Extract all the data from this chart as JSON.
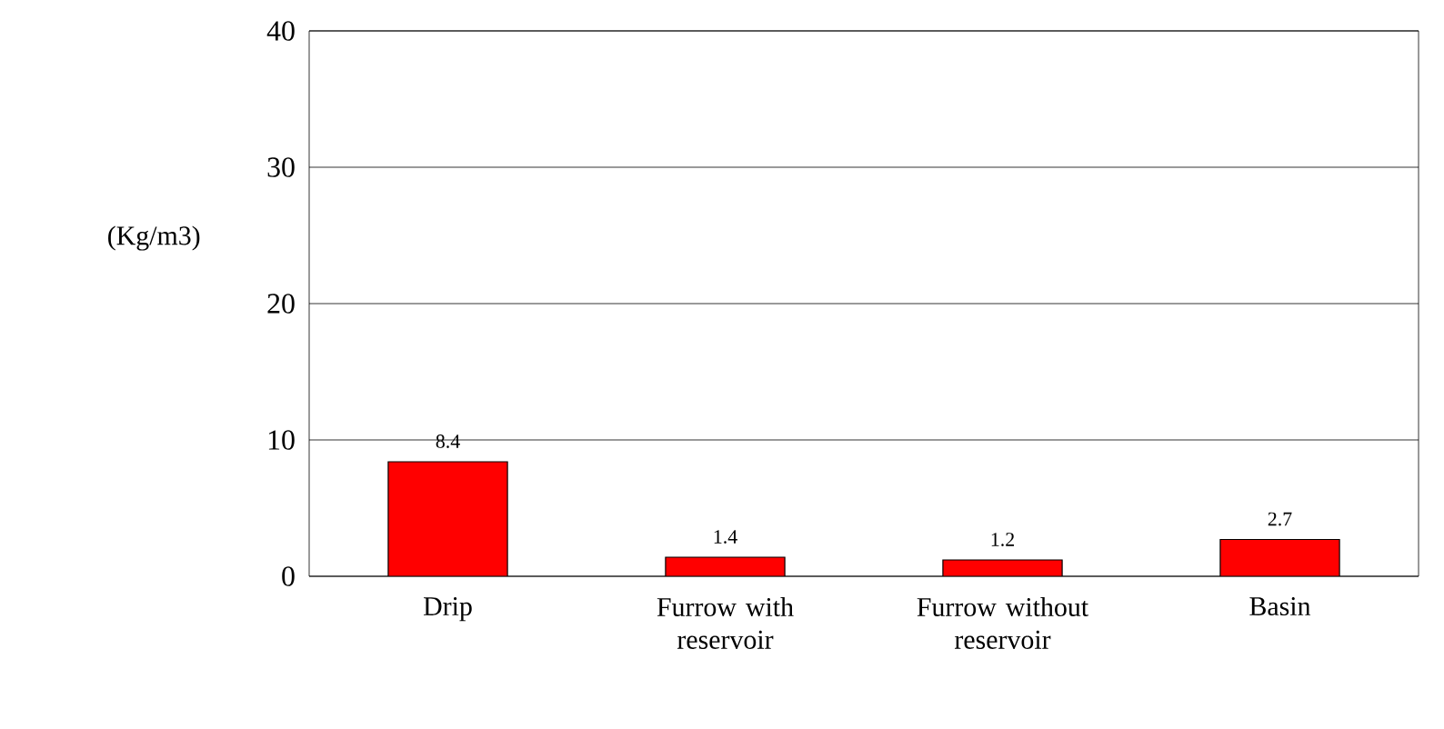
{
  "chart_data": {
    "type": "bar",
    "ylabel": "(Kg/m3)",
    "categories": [
      "Drip",
      "Furrow with reservoir",
      "Furrow without reservoir",
      "Basin"
    ],
    "values": [
      8.4,
      1.4,
      1.2,
      2.7
    ],
    "color": "#ff0000",
    "ylim": [
      0,
      40
    ],
    "yticks": [
      0,
      10,
      20,
      30,
      40
    ],
    "grid": "y",
    "data_labels": true
  }
}
